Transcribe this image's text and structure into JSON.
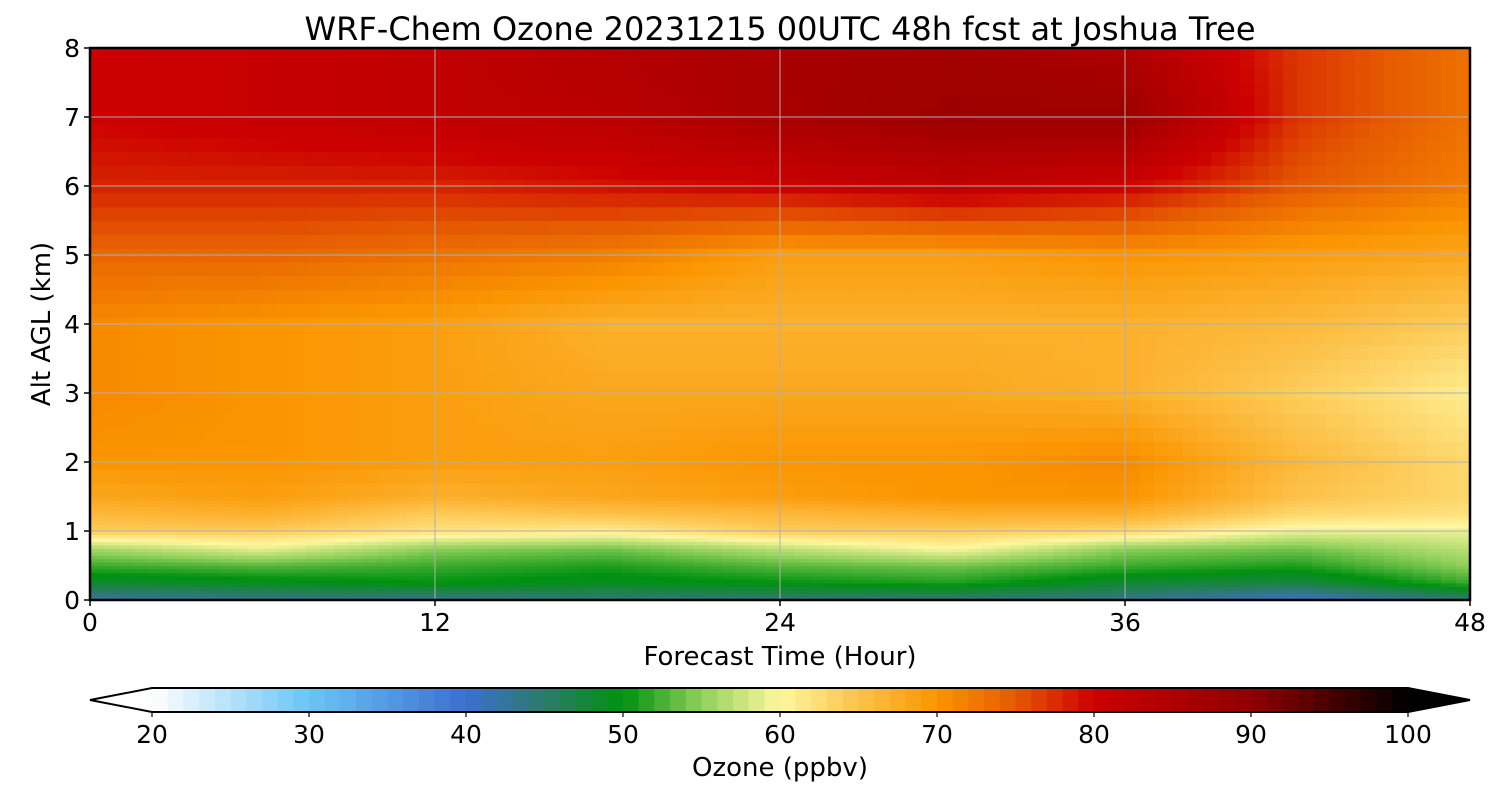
{
  "chart_data": {
    "type": "heatmap",
    "title": "WRF-Chem Ozone  20231215 00UTC 48h fcst at Joshua Tree",
    "xlabel": "Forecast Time (Hour)",
    "ylabel": "Alt AGL (km)",
    "xlim": [
      0,
      48
    ],
    "ylim": [
      0,
      8
    ],
    "xticks": [
      "0",
      "12",
      "24",
      "36",
      "48"
    ],
    "yticks": [
      "0",
      "1",
      "2",
      "3",
      "4",
      "5",
      "6",
      "7",
      "8"
    ],
    "grid": true,
    "x": [
      0,
      6,
      12,
      18,
      24,
      30,
      36,
      42,
      48
    ],
    "y": [
      0,
      0.25,
      0.5,
      0.75,
      1,
      1.25,
      1.5,
      2,
      3,
      4,
      5,
      6,
      7,
      8
    ],
    "z": [
      [
        42,
        43,
        43,
        44,
        44,
        44,
        43,
        40,
        44
      ],
      [
        48,
        49,
        50,
        49,
        50,
        51,
        48,
        47,
        52
      ],
      [
        52,
        53,
        52,
        51,
        53,
        54,
        52,
        51,
        55
      ],
      [
        56,
        59,
        55,
        54,
        57,
        60,
        55,
        54,
        57
      ],
      [
        64,
        64,
        62,
        61,
        64,
        64,
        63,
        59,
        59
      ],
      [
        66,
        67,
        64,
        65,
        66,
        67,
        67,
        63,
        62
      ],
      [
        68,
        69,
        67,
        68,
        69,
        70,
        70,
        65,
        63
      ],
      [
        70,
        70,
        69,
        69,
        70,
        70,
        71,
        66,
        63
      ],
      [
        71,
        70,
        69,
        68,
        68,
        68,
        67,
        64,
        61
      ],
      [
        71,
        70,
        69,
        67,
        67,
        67,
        67,
        66,
        64
      ],
      [
        74,
        74,
        73,
        72,
        69,
        69,
        70,
        69,
        68
      ],
      [
        78,
        78,
        78,
        79,
        80,
        82,
        80,
        75,
        72
      ],
      [
        80,
        81,
        82,
        83,
        86,
        88,
        88,
        77,
        73
      ],
      [
        80,
        81,
        82,
        84,
        86,
        87,
        85,
        77,
        73
      ]
    ],
    "colorbar": {
      "label": "Ozone  (ppbv)",
      "min": 20,
      "max": 100,
      "ticks": [
        "20",
        "30",
        "40",
        "50",
        "60",
        "70",
        "80",
        "90",
        "100"
      ],
      "extend": "both",
      "stops": [
        {
          "v": 20,
          "c": "#ffffff"
        },
        {
          "v": 30,
          "c": "#6ac5f5"
        },
        {
          "v": 40,
          "c": "#3c6fcf"
        },
        {
          "v": 45,
          "c": "#2b7a6a"
        },
        {
          "v": 50,
          "c": "#00910f"
        },
        {
          "v": 55,
          "c": "#8fd05a"
        },
        {
          "v": 60,
          "c": "#fff7a0"
        },
        {
          "v": 65,
          "c": "#fcc24a"
        },
        {
          "v": 70,
          "c": "#fb9500"
        },
        {
          "v": 75,
          "c": "#e55a00"
        },
        {
          "v": 80,
          "c": "#cc0000"
        },
        {
          "v": 90,
          "c": "#900000"
        },
        {
          "v": 100,
          "c": "#000000"
        }
      ]
    }
  }
}
